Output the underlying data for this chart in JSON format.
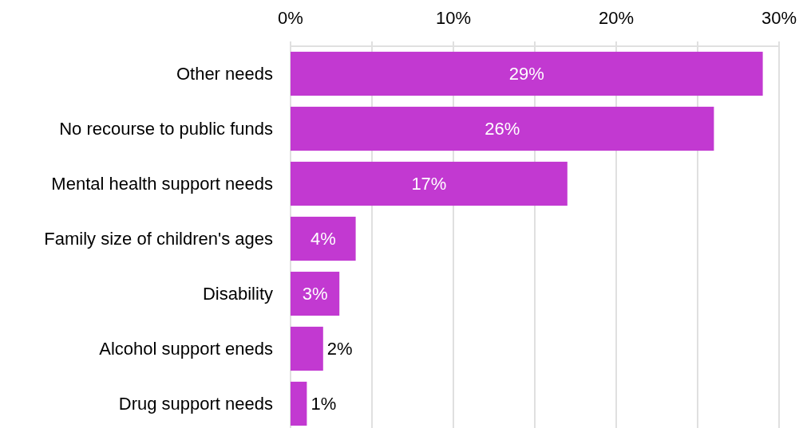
{
  "chart_data": {
    "type": "bar",
    "orientation": "horizontal",
    "categories": [
      "Other needs",
      "No recourse to public funds",
      "Mental health support needs",
      "Family size of children's ages",
      "Disability",
      "Alcohol support eneds",
      "Drug support needs"
    ],
    "values": [
      29,
      26,
      17,
      4,
      3,
      2,
      1
    ],
    "value_labels": [
      "29%",
      "26%",
      "17%",
      "4%",
      "3%",
      "2%",
      "1%"
    ],
    "color": "#c239d1",
    "xlim": [
      0,
      30
    ],
    "xticks": [
      {
        "value": 0,
        "label": "0%"
      },
      {
        "value": 5,
        "label": null
      },
      {
        "value": 10,
        "label": "10%"
      },
      {
        "value": 15,
        "label": null
      },
      {
        "value": 20,
        "label": "20%"
      },
      {
        "value": 25,
        "label": null
      },
      {
        "value": 30,
        "label": "30%"
      }
    ],
    "grid": "x"
  }
}
